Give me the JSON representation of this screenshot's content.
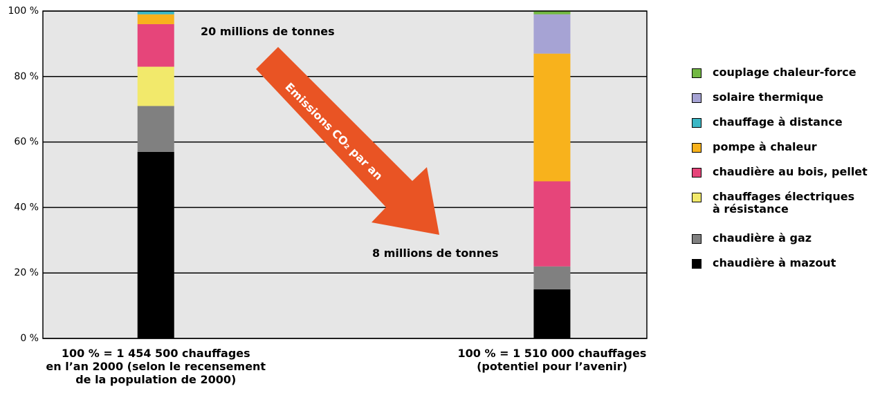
{
  "chart_data": {
    "type": "stacked-bar",
    "categories": [
      "100 % = 1 454 500 chauffages\nen l’an 2000 (selon le recensement\nde la population de 2000)",
      "100 % = 1 510 000 chauffages\n(potentiel pour l’avenir)"
    ],
    "series": [
      {
        "name": "chaudière à mazout",
        "color": "#000000",
        "values": [
          57,
          15
        ]
      },
      {
        "name": "chaudière à gaz",
        "color": "#808080",
        "values": [
          14,
          7
        ]
      },
      {
        "name": "chauffages électriques\nà résistance",
        "color": "#f2e96b",
        "values": [
          12,
          0
        ]
      },
      {
        "name": "chaudière au bois, pellet",
        "color": "#e6457a",
        "values": [
          13,
          26
        ]
      },
      {
        "name": "pompe à chaleur",
        "color": "#f8b21c",
        "values": [
          3,
          39
        ]
      },
      {
        "name": "chauffage à distance",
        "color": "#3bb7c5",
        "values": [
          1,
          0
        ]
      },
      {
        "name": "solaire thermique",
        "color": "#a6a3d4",
        "values": [
          0,
          12
        ]
      },
      {
        "name": "couplage chaleur-force",
        "color": "#72b843",
        "values": [
          0,
          1
        ]
      }
    ],
    "ylim": [
      0,
      100
    ],
    "yticks": [
      {
        "value": 0,
        "label": "0 %"
      },
      {
        "value": 20,
        "label": "20 %"
      },
      {
        "value": 40,
        "label": "40 %"
      },
      {
        "value": 60,
        "label": "60 %"
      },
      {
        "value": 80,
        "label": "80 %"
      },
      {
        "value": 100,
        "label": "100 %"
      }
    ],
    "grid": true,
    "annotations": [
      "20 millions de tonnes",
      "8 millions de tonnes",
      "Emissions CO₂ par an"
    ]
  }
}
